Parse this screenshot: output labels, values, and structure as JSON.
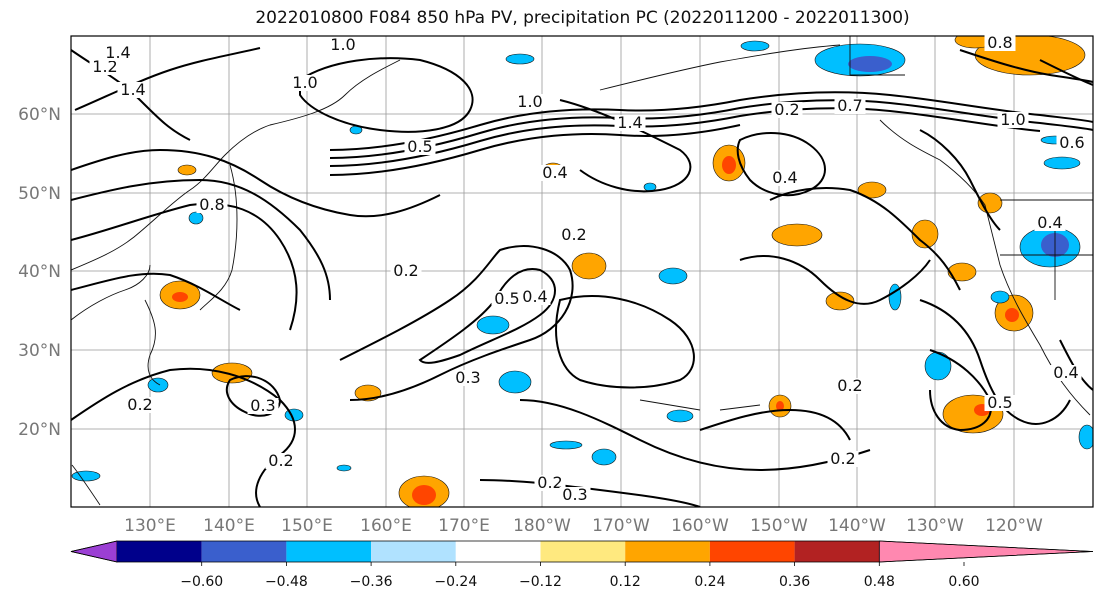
{
  "title": "2022010800 F084 850 hPa PV, precipitation PC (2022011200 - 2022011300)",
  "map": {
    "lat_labels": [
      "60°N",
      "50°N",
      "40°N",
      "30°N",
      "20°N"
    ],
    "lon_labels": [
      "130°E",
      "140°E",
      "150°E",
      "160°E",
      "170°E",
      "180°W",
      "170°W",
      "160°W",
      "150°W",
      "140°W",
      "130°W",
      "120°W"
    ],
    "contour_labels": [
      "1.0",
      "1.2",
      "1.4",
      "1.4",
      "1.0",
      "1.4",
      "0.7",
      "0.4",
      "0.8",
      "1.0",
      "0.5",
      "0.4",
      "0.2",
      "0.2",
      "0.5",
      "0.4",
      "0.3",
      "0.3",
      "0.2",
      "0.2",
      "0.2",
      "0.3",
      "0.2",
      "0.2",
      "0.5",
      "0.4",
      "0.2",
      "0.4",
      "1.0",
      "0.8",
      "0.6"
    ]
  },
  "colorbar": {
    "tick_labels": [
      "−0.60",
      "−0.48",
      "−0.36",
      "−0.24",
      "−0.12",
      "0.12",
      "0.24",
      "0.36",
      "0.48",
      "0.60"
    ],
    "colors": [
      "#9b3fd4",
      "#00008b",
      "#3a5fcd",
      "#00bfff",
      "#b0e2ff",
      "#ffffff",
      "#ffe97f",
      "#ffa500",
      "#ff4500",
      "#b22222",
      "#ff88b0"
    ]
  }
}
